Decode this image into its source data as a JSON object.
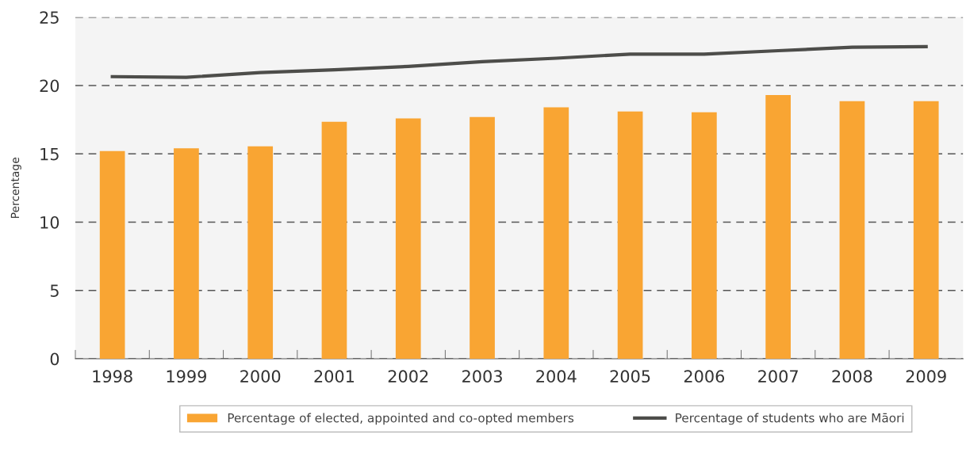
{
  "chart_data": {
    "type": "bar",
    "ylabel": "Percentage",
    "categories": [
      "1998",
      "1999",
      "2000",
      "2001",
      "2002",
      "2003",
      "2004",
      "2005",
      "2006",
      "2007",
      "2008",
      "2009"
    ],
    "series": [
      {
        "name": "Percentage of elected, appointed and co-opted members",
        "color": "#f9a533",
        "values": [
          15.2,
          15.4,
          15.55,
          17.35,
          17.6,
          17.7,
          18.4,
          18.1,
          18.05,
          19.3,
          18.85,
          18.85
        ]
      },
      {
        "name": "Percentage of students who are Māori",
        "type": "line",
        "color": "#4d4d4a",
        "values": [
          20.65,
          20.6,
          20.95,
          21.15,
          21.4,
          21.75,
          22.0,
          22.3,
          22.3,
          22.55,
          22.8,
          22.85
        ]
      }
    ],
    "ylim": [
      0,
      25
    ],
    "yticks": [
      0,
      5,
      10,
      15,
      20,
      25
    ],
    "grid": "y",
    "legend": "bottom",
    "line_style": "solid",
    "marker": "none"
  }
}
